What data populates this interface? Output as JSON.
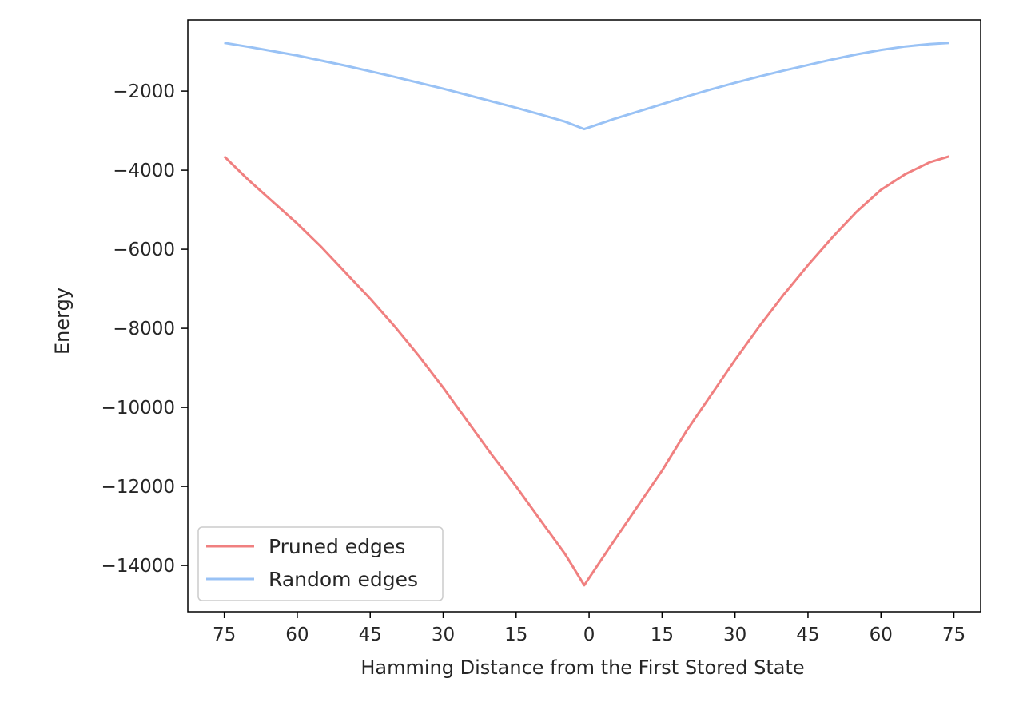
{
  "chart_data": {
    "type": "line",
    "title": "",
    "xlabel": "Hamming Distance from the First Stored State",
    "ylabel": "Energy",
    "x_tick_labels": [
      "75",
      "60",
      "45",
      "30",
      "15",
      "0",
      "15",
      "30",
      "45",
      "60",
      "75"
    ],
    "x_tick_positions": [
      -75,
      -60,
      -45,
      -30,
      -15,
      0,
      15,
      30,
      45,
      60,
      75
    ],
    "xlim": [
      -82.5,
      80.5
    ],
    "y_ticks": [
      -2000,
      -4000,
      -6000,
      -8000,
      -10000,
      -12000,
      -14000
    ],
    "y_tick_labels": [
      "−2000",
      "−4000",
      "−6000",
      "−8000",
      "−10000",
      "−12000",
      "−14000"
    ],
    "ylim": [
      -15170,
      -200
    ],
    "grid": false,
    "legend_position": "lower-left",
    "series": [
      {
        "name": "Pruned edges",
        "color": "#f08080",
        "x": [
          -75,
          -70,
          -65,
          -60,
          -55,
          -50,
          -45,
          -40,
          -35,
          -30,
          -25,
          -20,
          -15,
          -10,
          -5,
          -1,
          5,
          10,
          15,
          20,
          25,
          30,
          35,
          40,
          45,
          50,
          55,
          60,
          65,
          70,
          74
        ],
        "values": [
          -3650,
          -4250,
          -4800,
          -5350,
          -5950,
          -6600,
          -7250,
          -7950,
          -8700,
          -9500,
          -10350,
          -11200,
          -12000,
          -12850,
          -13700,
          -14500,
          -13400,
          -12500,
          -11600,
          -10600,
          -9700,
          -8800,
          -7950,
          -7150,
          -6400,
          -5700,
          -5050,
          -4500,
          -4100,
          -3800,
          -3650
        ]
      },
      {
        "name": "Random edges",
        "color": "#99c2f5",
        "x": [
          -75,
          -70,
          -65,
          -60,
          -55,
          -50,
          -45,
          -40,
          -35,
          -30,
          -25,
          -20,
          -15,
          -10,
          -5,
          -1,
          5,
          10,
          15,
          20,
          25,
          30,
          35,
          40,
          45,
          50,
          55,
          60,
          65,
          70,
          74
        ],
        "values": [
          -780,
          -880,
          -990,
          -1100,
          -1230,
          -1360,
          -1500,
          -1640,
          -1790,
          -1940,
          -2100,
          -2260,
          -2420,
          -2590,
          -2770,
          -2960,
          -2710,
          -2520,
          -2330,
          -2140,
          -1960,
          -1790,
          -1630,
          -1480,
          -1340,
          -1200,
          -1070,
          -960,
          -870,
          -810,
          -780
        ]
      }
    ]
  }
}
